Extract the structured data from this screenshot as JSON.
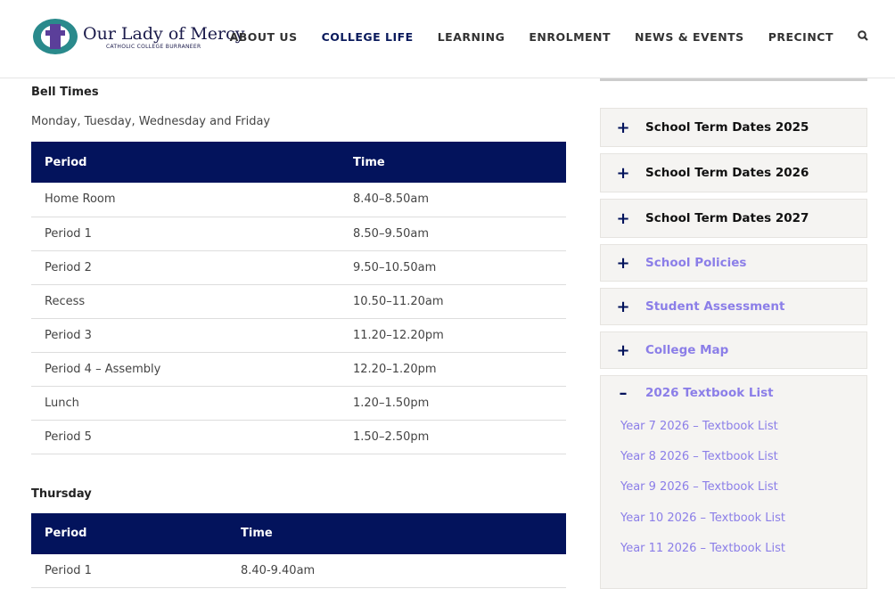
{
  "header": {
    "logo_title": "Our Lady of Mercy",
    "logo_subtitle": "CATHOLIC COLLEGE BURRANEER",
    "nav": [
      "ABOUT US",
      "COLLEGE LIFE",
      "LEARNING",
      "ENROLMENT",
      "NEWS & EVENTS",
      "PRECINCT"
    ],
    "active_nav": "COLLEGE LIFE",
    "search_icon": "search-icon"
  },
  "main": {
    "heading": "Bell Times",
    "subheading": "Monday, Tuesday, Wednesday and Friday",
    "table1": {
      "headers": [
        "Period",
        "Time"
      ],
      "rows": [
        [
          "Home Room",
          "8.40–8.50am"
        ],
        [
          "Period 1",
          "8.50–9.50am"
        ],
        [
          "Period 2",
          "9.50–10.50am"
        ],
        [
          "Recess",
          "10.50–11.20am"
        ],
        [
          "Period 3",
          "11.20–12.20pm"
        ],
        [
          "Period 4 – Assembly",
          "12.20–1.20pm"
        ],
        [
          "Lunch",
          "1.20–1.50pm"
        ],
        [
          "Period 5",
          "1.50–2.50pm"
        ]
      ]
    },
    "heading2": "Thursday",
    "table2": {
      "headers": [
        "Period",
        "Time"
      ],
      "rows": [
        [
          "Period 1",
          "8.40-9.40am"
        ]
      ]
    }
  },
  "sidebar": {
    "items": [
      {
        "label": "School Term Dates 2025",
        "sign": "+"
      },
      {
        "label": "School Term Dates 2026",
        "sign": "+"
      },
      {
        "label": "School Term Dates 2027",
        "sign": "+"
      },
      {
        "label": "School Policies",
        "sign": "+"
      },
      {
        "label": "Student Assessment",
        "sign": "+"
      },
      {
        "label": "College Map",
        "sign": "+"
      }
    ],
    "open": {
      "label": "2026 Textbook List",
      "sign": "–",
      "links": [
        "Year 7 2026 – Textbook List",
        "Year 8 2026 – Textbook List",
        "Year 9 2026 – Textbook List",
        "Year 10 2026 – Textbook List",
        "Year 11 2026 – Textbook List"
      ]
    }
  },
  "colors": {
    "navy": "#03135c",
    "link": "#8b7ee8",
    "panel": "#f5f4f2"
  }
}
